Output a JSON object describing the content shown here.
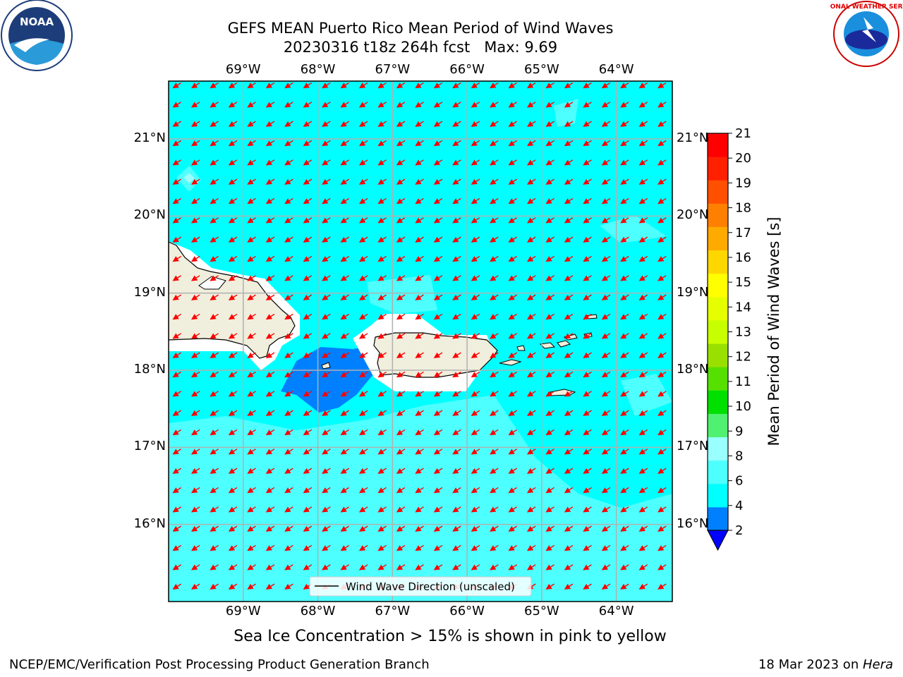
{
  "title_line1": "GEFS MEAN Puerto Rico Mean Period of Wind Waves",
  "title_line2": "20230316 t18z 264h fcst   Max: 9.69",
  "subtitle": "Sea Ice Concentration > 15% is shown in pink to yellow",
  "footer_left": "NCEP/EMC/Verification Post Processing Product Generation Branch",
  "footer_date": "18 Mar 2023 on ",
  "footer_machine": "Hera",
  "legend_label": "Wind Wave Direction (unscaled)",
  "logos": {
    "left": "NOAA",
    "right": "NATIONAL WEATHER SERVICE"
  },
  "map": {
    "lon_labels": [
      "69°W",
      "68°W",
      "67°W",
      "66°W",
      "65°W",
      "64°W"
    ],
    "lat_labels": [
      "21°N",
      "20°N",
      "19°N",
      "18°N",
      "17°N",
      "16°N"
    ],
    "lon_values": [
      -69,
      -68,
      -67,
      -66,
      -65,
      -64
    ],
    "lat_values": [
      21,
      20,
      19,
      18,
      17,
      16
    ],
    "lon_range": [
      -70,
      -63.25
    ],
    "lat_range": [
      15,
      21.75
    ],
    "arrow_color": "#ff0000",
    "land_color": "#f0eedc",
    "ocean_base_color": "#00ffff"
  },
  "colorbar": {
    "label": "Mean Period of Wind Waves [s]",
    "ticks": [
      "21",
      "20",
      "19",
      "18",
      "17",
      "16",
      "15",
      "14",
      "13",
      "12",
      "11",
      "10",
      "9",
      "8",
      "6",
      "4",
      "2"
    ],
    "colors": [
      "#0000ff",
      "#0080ff",
      "#00ffff",
      "#4dffff",
      "#99ffff",
      "#50f070",
      "#00e000",
      "#55e000",
      "#99e000",
      "#c8ff00",
      "#e6ff00",
      "#ffff00",
      "#ffd700",
      "#ffaa00",
      "#ff8000",
      "#ff5000",
      "#ff2000",
      "#ff0000"
    ]
  }
}
